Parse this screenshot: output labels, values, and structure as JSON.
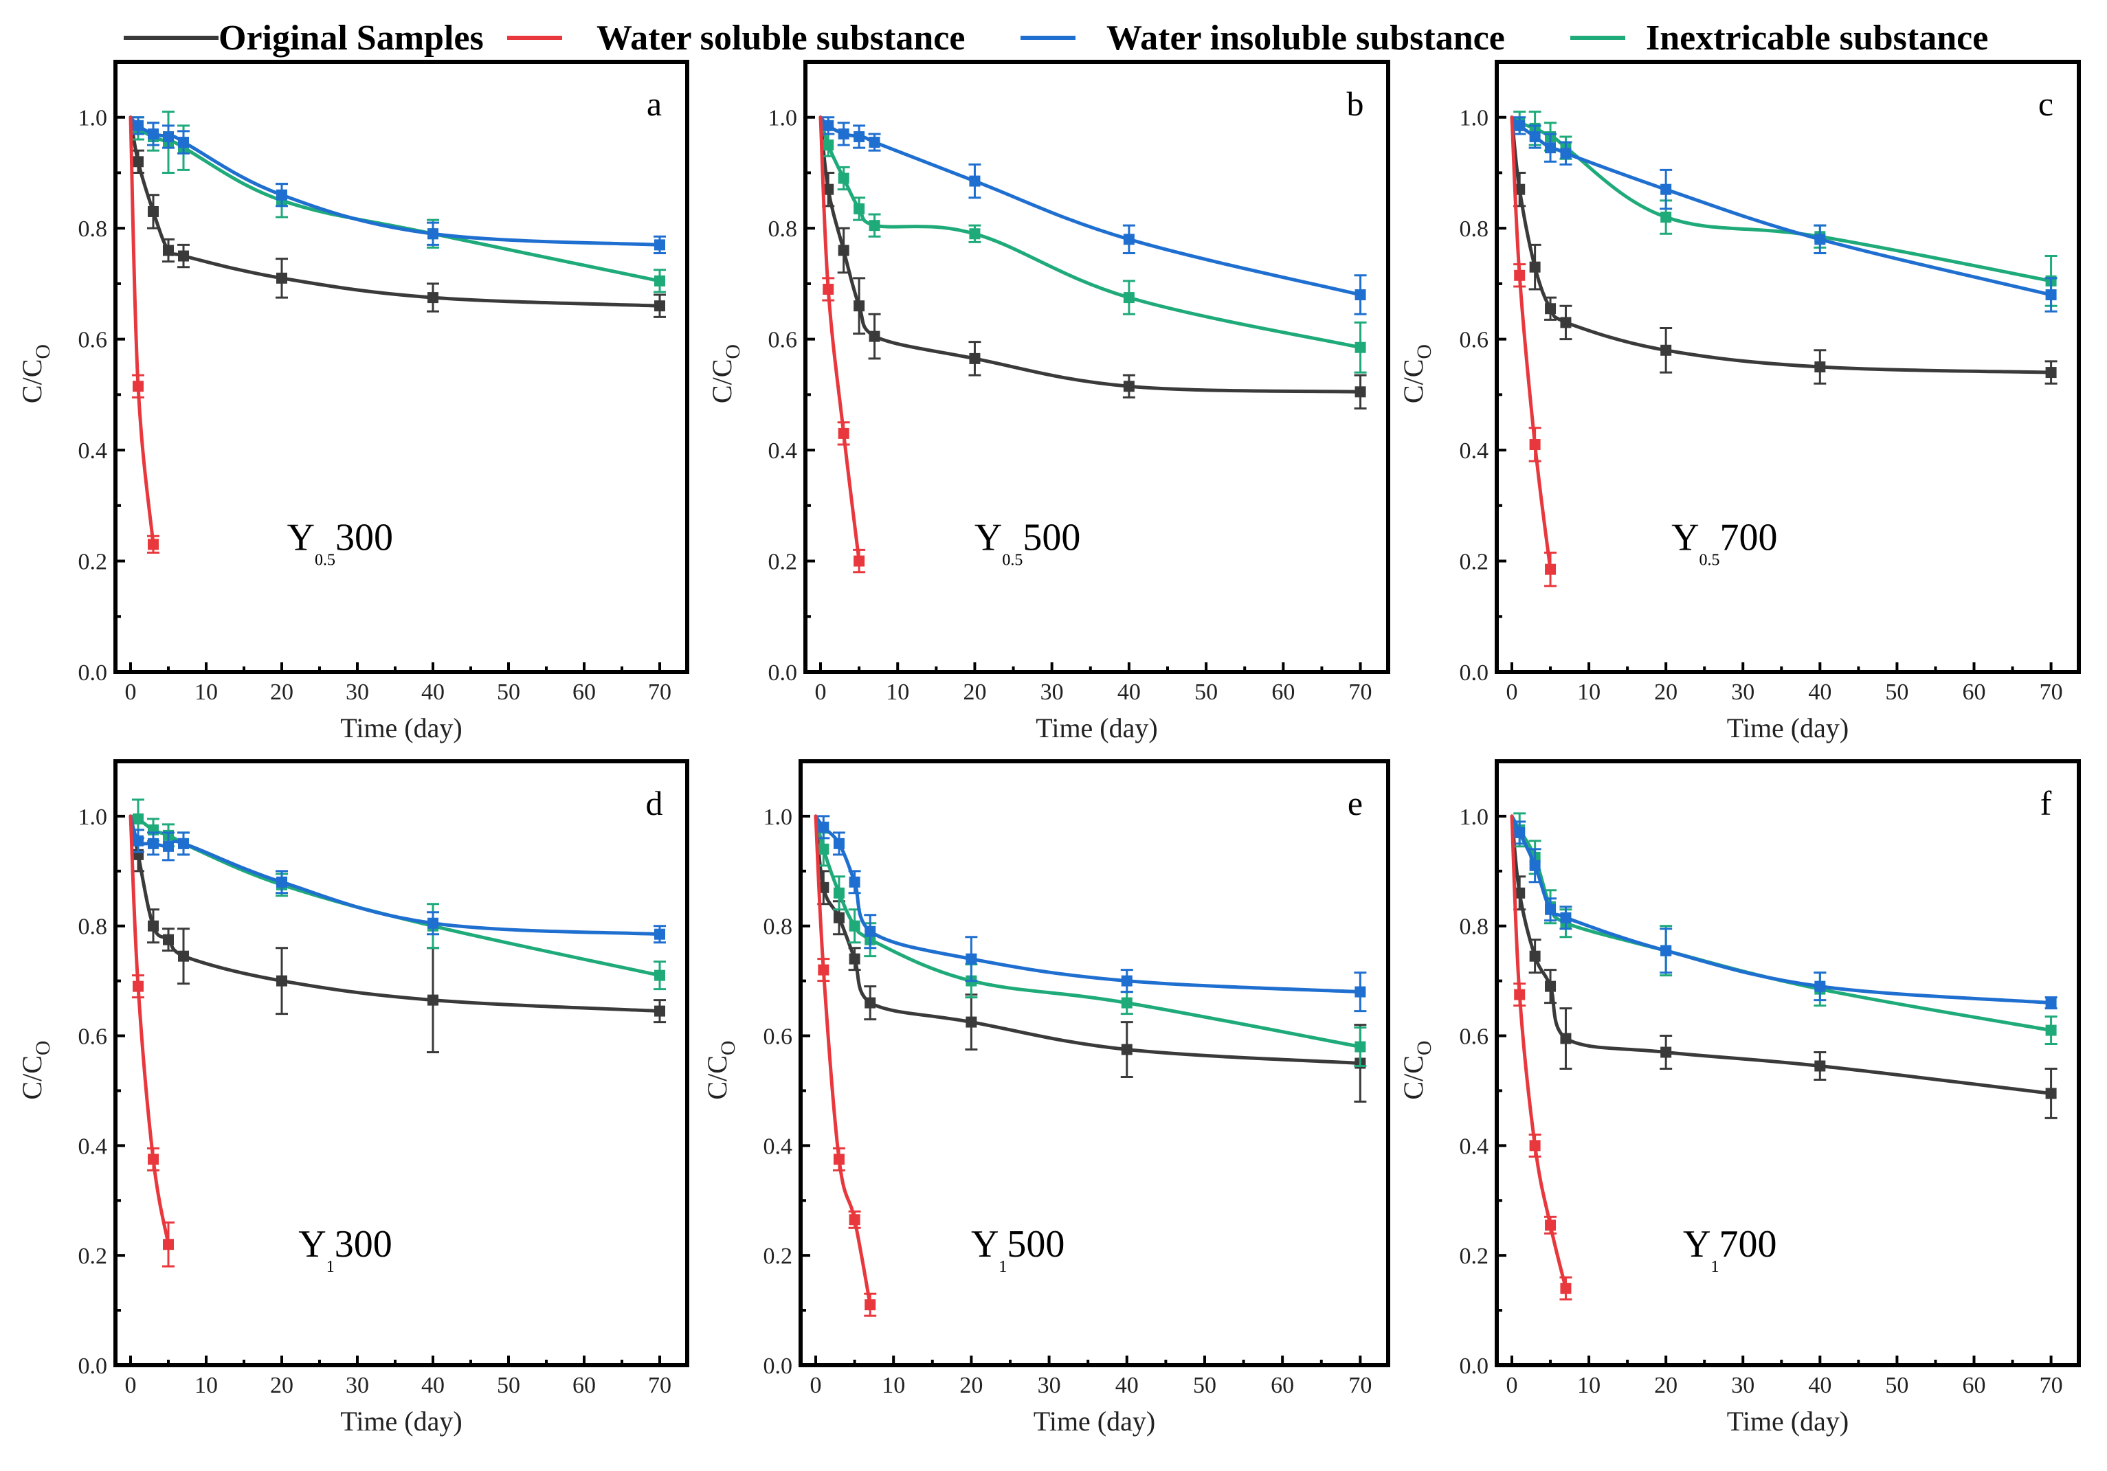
{
  "legend": [
    {
      "name": "Original Samples",
      "color": "#3a3a3a"
    },
    {
      "name": "Water soluble substance",
      "color": "#e8383d"
    },
    {
      "name": "Water insoluble substance",
      "color": "#1f6fd0"
    },
    {
      "name": "Inextricable substance",
      "color": "#1faa7a"
    }
  ],
  "chart_data": [
    {
      "type": "line",
      "panel": "a",
      "sample": {
        "base": "Y",
        "sub": "0.5",
        "temp": "300"
      },
      "xlabel": "Time (day)",
      "ylabel": "C/C",
      "ylabel_sub": "O",
      "xlim": [
        0,
        72
      ],
      "ylim": [
        0,
        1.1
      ],
      "xticks": [
        0,
        10,
        20,
        30,
        40,
        50,
        60,
        70
      ],
      "yticks": [
        "0.0",
        "0.2",
        "0.4",
        "0.6",
        "0.8",
        "1.0"
      ],
      "series": [
        {
          "name": "Original Samples",
          "x": [
            0,
            1,
            3,
            5,
            7,
            20,
            40,
            70
          ],
          "y": [
            1.0,
            0.92,
            0.83,
            0.76,
            0.75,
            0.71,
            0.675,
            0.66
          ],
          "err": [
            0.01,
            0.02,
            0.03,
            0.02,
            0.02,
            0.035,
            0.025,
            0.02
          ]
        },
        {
          "name": "Water soluble substance",
          "x": [
            0,
            1,
            3
          ],
          "y": [
            1.0,
            0.515,
            0.23
          ],
          "err": [
            0.01,
            0.02,
            0.015
          ]
        },
        {
          "name": "Water insoluble substance",
          "x": [
            0,
            1,
            3,
            5,
            7,
            20,
            40,
            70
          ],
          "y": [
            1.0,
            0.985,
            0.97,
            0.965,
            0.955,
            0.86,
            0.79,
            0.77
          ],
          "err": [
            0.01,
            0.015,
            0.02,
            0.02,
            0.02,
            0.02,
            0.02,
            0.015
          ]
        },
        {
          "name": "Inextricable substance",
          "x": [
            0,
            1,
            3,
            5,
            7,
            20,
            40,
            70
          ],
          "y": [
            1.0,
            0.98,
            0.965,
            0.955,
            0.945,
            0.85,
            0.79,
            0.705
          ],
          "err": [
            0.01,
            0.02,
            0.025,
            0.055,
            0.04,
            0.03,
            0.025,
            0.02
          ]
        }
      ]
    },
    {
      "type": "line",
      "panel": "b",
      "sample": {
        "base": "Y",
        "sub": "0.5",
        "temp": "500"
      },
      "xlabel": "Time (day)",
      "ylabel": "C/C",
      "ylabel_sub": "O",
      "xlim": [
        0,
        72
      ],
      "ylim": [
        0,
        1.1
      ],
      "xticks": [
        0,
        10,
        20,
        30,
        40,
        50,
        60,
        70
      ],
      "yticks": [
        "0.0",
        "0.2",
        "0.4",
        "0.6",
        "0.8",
        "1.0"
      ],
      "series": [
        {
          "name": "Original Samples",
          "x": [
            0,
            1,
            3,
            5,
            7,
            20,
            40,
            70
          ],
          "y": [
            1.0,
            0.87,
            0.76,
            0.66,
            0.605,
            0.565,
            0.515,
            0.505
          ],
          "err": [
            0.01,
            0.03,
            0.04,
            0.05,
            0.04,
            0.03,
            0.02,
            0.03
          ]
        },
        {
          "name": "Water soluble substance",
          "x": [
            0,
            1,
            3,
            5
          ],
          "y": [
            1.0,
            0.69,
            0.43,
            0.2
          ],
          "err": [
            0.01,
            0.02,
            0.02,
            0.02
          ]
        },
        {
          "name": "Water insoluble substance",
          "x": [
            0,
            1,
            3,
            5,
            7,
            20,
            40,
            70
          ],
          "y": [
            1.0,
            0.985,
            0.97,
            0.965,
            0.955,
            0.885,
            0.78,
            0.68
          ],
          "err": [
            0.01,
            0.015,
            0.02,
            0.02,
            0.015,
            0.03,
            0.025,
            0.035
          ]
        },
        {
          "name": "Inextricable substance",
          "x": [
            0,
            1,
            3,
            5,
            7,
            20,
            40,
            70
          ],
          "y": [
            1.0,
            0.95,
            0.89,
            0.835,
            0.805,
            0.79,
            0.675,
            0.585
          ],
          "err": [
            0.01,
            0.02,
            0.02,
            0.02,
            0.02,
            0.015,
            0.03,
            0.045
          ]
        }
      ]
    },
    {
      "type": "line",
      "panel": "c",
      "sample": {
        "base": "Y",
        "sub": "0.5",
        "temp": "700"
      },
      "xlabel": "Time (day)",
      "ylabel": "C/C",
      "ylabel_sub": "O",
      "xlim": [
        0,
        72
      ],
      "ylim": [
        0,
        1.1
      ],
      "xticks": [
        0,
        10,
        20,
        30,
        40,
        50,
        60,
        70
      ],
      "yticks": [
        "0.0",
        "0.2",
        "0.4",
        "0.6",
        "0.8",
        "1.0"
      ],
      "series": [
        {
          "name": "Original Samples",
          "x": [
            0,
            1,
            3,
            5,
            7,
            20,
            40,
            70
          ],
          "y": [
            1.0,
            0.87,
            0.73,
            0.655,
            0.63,
            0.58,
            0.55,
            0.54
          ],
          "err": [
            0.01,
            0.03,
            0.04,
            0.02,
            0.03,
            0.04,
            0.03,
            0.02
          ]
        },
        {
          "name": "Water soluble substance",
          "x": [
            0,
            1,
            3,
            5
          ],
          "y": [
            1.0,
            0.715,
            0.41,
            0.185
          ],
          "err": [
            0.01,
            0.02,
            0.03,
            0.03
          ]
        },
        {
          "name": "Water insoluble substance",
          "x": [
            0,
            1,
            3,
            5,
            7,
            20,
            40,
            70
          ],
          "y": [
            1.0,
            0.985,
            0.965,
            0.945,
            0.935,
            0.87,
            0.78,
            0.68
          ],
          "err": [
            0.01,
            0.015,
            0.02,
            0.025,
            0.02,
            0.035,
            0.025,
            0.03
          ]
        },
        {
          "name": "Inextricable substance",
          "x": [
            0,
            1,
            3,
            5,
            7,
            20,
            40,
            70
          ],
          "y": [
            1.0,
            0.99,
            0.98,
            0.965,
            0.945,
            0.82,
            0.785,
            0.705
          ],
          "err": [
            0.01,
            0.02,
            0.03,
            0.025,
            0.02,
            0.03,
            0.02,
            0.045
          ]
        }
      ]
    },
    {
      "type": "line",
      "panel": "d",
      "sample": {
        "base": "Y",
        "sub": "1",
        "temp": "300"
      },
      "xlabel": "Time (day)",
      "ylabel": "C/C",
      "ylabel_sub": "O",
      "xlim": [
        0,
        72
      ],
      "ylim": [
        0,
        1.1
      ],
      "xticks": [
        0,
        10,
        20,
        30,
        40,
        50,
        60,
        70
      ],
      "yticks": [
        "0.0",
        "0.2",
        "0.4",
        "0.6",
        "0.8",
        "1.0"
      ],
      "series": [
        {
          "name": "Original Samples",
          "x": [
            0,
            1,
            3,
            5,
            7,
            20,
            40,
            70
          ],
          "y": [
            1.0,
            0.93,
            0.8,
            0.775,
            0.745,
            0.7,
            0.665,
            0.645
          ],
          "err": [
            0.01,
            0.03,
            0.03,
            0.02,
            0.05,
            0.06,
            0.095,
            0.02
          ]
        },
        {
          "name": "Water soluble substance",
          "x": [
            0,
            1,
            3,
            5
          ],
          "y": [
            1.0,
            0.69,
            0.375,
            0.22
          ],
          "err": [
            0.01,
            0.02,
            0.02,
            0.04
          ]
        },
        {
          "name": "Water insoluble substance",
          "x": [
            0,
            1,
            3,
            5,
            7,
            20,
            40,
            70
          ],
          "y": [
            1.0,
            0.955,
            0.95,
            0.945,
            0.95,
            0.88,
            0.805,
            0.785
          ],
          "err": [
            0.01,
            0.02,
            0.02,
            0.025,
            0.02,
            0.02,
            0.02,
            0.015
          ]
        },
        {
          "name": "Inextricable substance",
          "x": [
            0,
            1,
            3,
            5,
            7,
            20,
            40,
            70
          ],
          "y": [
            1.0,
            0.995,
            0.975,
            0.965,
            0.95,
            0.875,
            0.8,
            0.71
          ],
          "err": [
            0.01,
            0.035,
            0.02,
            0.02,
            0.02,
            0.02,
            0.04,
            0.025
          ]
        }
      ]
    },
    {
      "type": "line",
      "panel": "e",
      "sample": {
        "base": "Y",
        "sub": "1",
        "temp": "500"
      },
      "xlabel": "Time (day)",
      "ylabel": "C/C",
      "ylabel_sub": "O",
      "xlim": [
        0,
        72
      ],
      "ylim": [
        0,
        1.1
      ],
      "xticks": [
        0,
        10,
        20,
        30,
        40,
        50,
        60,
        70
      ],
      "yticks": [
        "0.0",
        "0.2",
        "0.4",
        "0.6",
        "0.8",
        "1.0"
      ],
      "series": [
        {
          "name": "Original Samples",
          "x": [
            0,
            1,
            3,
            5,
            7,
            20,
            40,
            70
          ],
          "y": [
            1.0,
            0.87,
            0.815,
            0.74,
            0.66,
            0.625,
            0.575,
            0.55
          ],
          "err": [
            0.01,
            0.03,
            0.03,
            0.02,
            0.03,
            0.05,
            0.05,
            0.07
          ]
        },
        {
          "name": "Water soluble substance",
          "x": [
            0,
            1,
            3,
            5,
            7
          ],
          "y": [
            1.0,
            0.72,
            0.375,
            0.265,
            0.11
          ],
          "err": [
            0.01,
            0.02,
            0.02,
            0.015,
            0.02
          ]
        },
        {
          "name": "Water insoluble substance",
          "x": [
            0,
            1,
            3,
            5,
            7,
            20,
            40,
            70
          ],
          "y": [
            1.0,
            0.98,
            0.95,
            0.88,
            0.79,
            0.74,
            0.7,
            0.68
          ],
          "err": [
            0.01,
            0.02,
            0.02,
            0.02,
            0.03,
            0.04,
            0.02,
            0.035
          ]
        },
        {
          "name": "Inextricable substance",
          "x": [
            0,
            1,
            3,
            5,
            7,
            20,
            40,
            70
          ],
          "y": [
            1.0,
            0.94,
            0.86,
            0.8,
            0.775,
            0.7,
            0.66,
            0.58
          ],
          "err": [
            0.01,
            0.03,
            0.03,
            0.03,
            0.03,
            0.03,
            0.02,
            0.035
          ]
        }
      ]
    },
    {
      "type": "line",
      "panel": "f",
      "sample": {
        "base": "Y",
        "sub": "1",
        "temp": "700"
      },
      "xlabel": "Time (day)",
      "ylabel": "C/C",
      "ylabel_sub": "O",
      "xlim": [
        0,
        72
      ],
      "ylim": [
        0,
        1.1
      ],
      "xticks": [
        0,
        10,
        20,
        30,
        40,
        50,
        60,
        70
      ],
      "yticks": [
        "0.0",
        "0.2",
        "0.4",
        "0.6",
        "0.8",
        "1.0"
      ],
      "series": [
        {
          "name": "Original Samples",
          "x": [
            0,
            1,
            3,
            5,
            7,
            20,
            40,
            70
          ],
          "y": [
            1.0,
            0.86,
            0.745,
            0.69,
            0.595,
            0.57,
            0.545,
            0.495
          ],
          "err": [
            0.01,
            0.03,
            0.03,
            0.03,
            0.055,
            0.03,
            0.025,
            0.045
          ]
        },
        {
          "name": "Water soluble substance",
          "x": [
            0,
            1,
            3,
            5,
            7
          ],
          "y": [
            1.0,
            0.675,
            0.4,
            0.255,
            0.14
          ],
          "err": [
            0.01,
            0.02,
            0.02,
            0.015,
            0.02
          ]
        },
        {
          "name": "Water insoluble substance",
          "x": [
            0,
            1,
            3,
            5,
            7,
            20,
            40,
            70
          ],
          "y": [
            1.0,
            0.97,
            0.91,
            0.83,
            0.815,
            0.755,
            0.69,
            0.66
          ],
          "err": [
            0.01,
            0.02,
            0.03,
            0.02,
            0.02,
            0.04,
            0.025,
            0.01
          ]
        },
        {
          "name": "Inextricable substance",
          "x": [
            0,
            1,
            3,
            5,
            7,
            20,
            40,
            70
          ],
          "y": [
            1.0,
            0.975,
            0.925,
            0.835,
            0.805,
            0.755,
            0.685,
            0.61
          ],
          "err": [
            0.01,
            0.03,
            0.03,
            0.03,
            0.025,
            0.045,
            0.03,
            0.025
          ]
        }
      ]
    }
  ]
}
